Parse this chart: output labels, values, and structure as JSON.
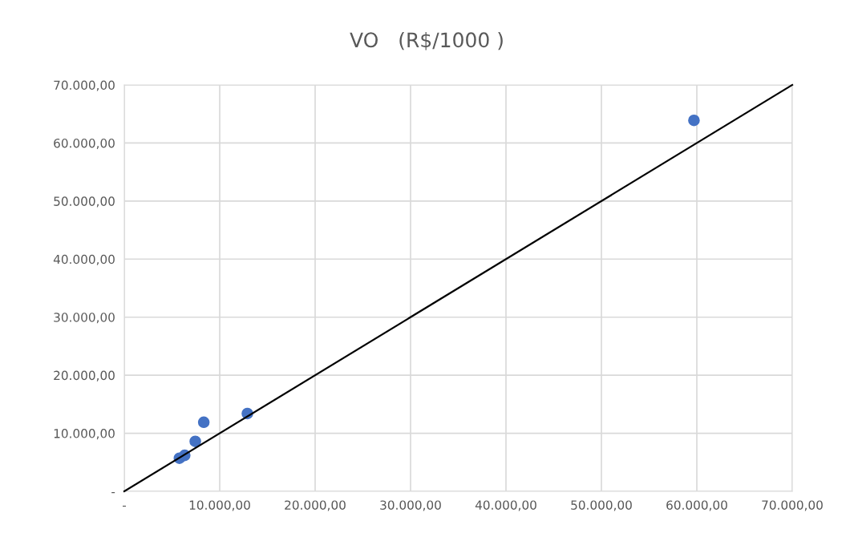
{
  "chart_data": {
    "type": "scatter",
    "title": "VO   (R$/1000 )",
    "series": [
      {
        "color": "#4472c4",
        "marker": "circle",
        "x": [
          5780,
          6330,
          7440,
          8330,
          12900,
          59700
        ],
        "values": [
          5700,
          6200,
          8600,
          11900,
          13400,
          63900
        ]
      },
      {
        "type": "line",
        "color": "#000000",
        "marker": "none",
        "line_style": "solid",
        "x": [
          0,
          70000
        ],
        "values": [
          0,
          70000
        ]
      }
    ],
    "xlim": [
      0,
      70000
    ],
    "ylim": [
      0,
      70000
    ],
    "xticks": [
      {
        "value": 0,
        "label": "-"
      },
      {
        "value": 10000,
        "label": "10.000,00"
      },
      {
        "value": 20000,
        "label": "20.000,00"
      },
      {
        "value": 30000,
        "label": "30.000,00"
      },
      {
        "value": 40000,
        "label": "40.000,00"
      },
      {
        "value": 50000,
        "label": "50.000,00"
      },
      {
        "value": 60000,
        "label": "60.000,00"
      },
      {
        "value": 70000,
        "label": "70.000,00"
      }
    ],
    "yticks": [
      {
        "value": 0,
        "label": "-"
      },
      {
        "value": 10000,
        "label": "10.000,00"
      },
      {
        "value": 20000,
        "label": "20.000,00"
      },
      {
        "value": 30000,
        "label": "30.000,00"
      },
      {
        "value": 40000,
        "label": "40.000,00"
      },
      {
        "value": 50000,
        "label": "50.000,00"
      },
      {
        "value": 60000,
        "label": "60.000,00"
      },
      {
        "value": 70000,
        "label": "70.000,00"
      }
    ],
    "grid": true
  }
}
